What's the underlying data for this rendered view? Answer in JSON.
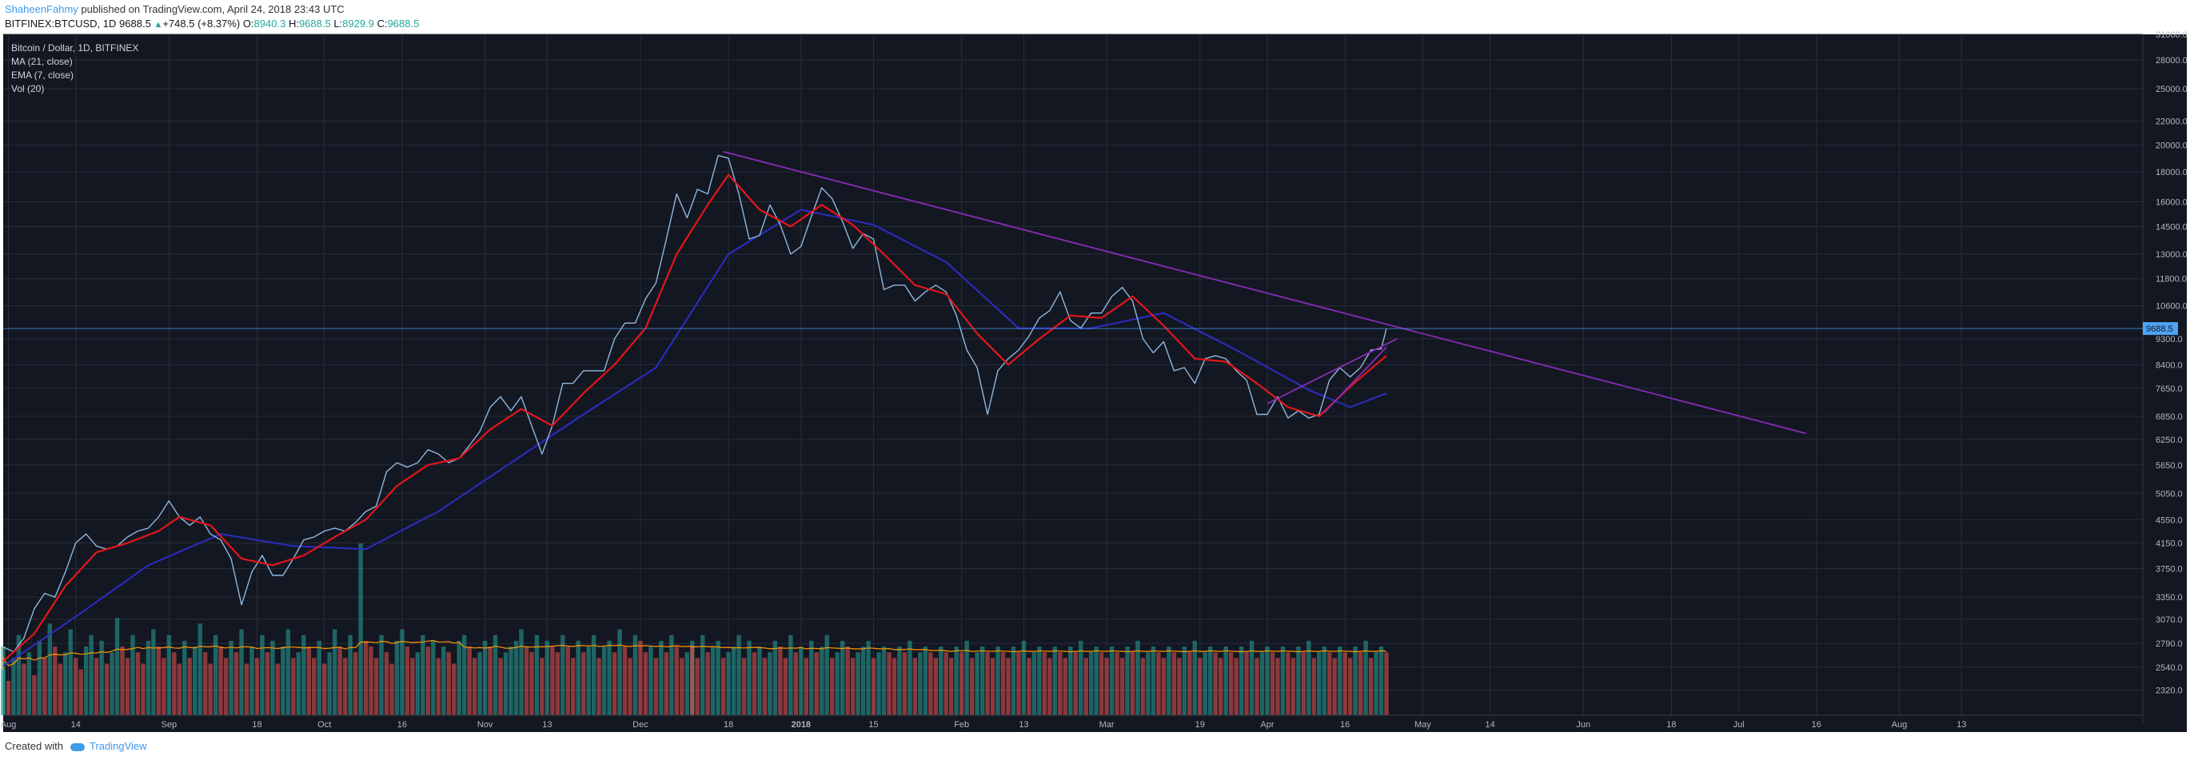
{
  "header": {
    "author": "ShaheenFahmy",
    "published_text": " published on TradingView.com, April 24, 2018 23:43 UTC",
    "symbol": "BITFINEX:BTCUSD, 1D",
    "last": "9688.5",
    "change": "+748.5 (+8.37%)",
    "open_label": "O:",
    "open": "8940.3",
    "high_label": "H:",
    "high": "9688.5",
    "low_label": "L:",
    "low": "8929.9",
    "close_label": "C:",
    "close": "9688.5"
  },
  "legend": {
    "title": "Bitcoin / Dollar, 1D, BITFINEX",
    "ma": "MA (21, close)",
    "ema": "EMA (7, close)",
    "vol": "Vol (20)"
  },
  "footer": {
    "created_with": "Created with",
    "brand": "TradingView"
  },
  "colors": {
    "background": "#131722",
    "grid": "#2a2e39",
    "price": "#8fb7dd",
    "ema": "#e3161b",
    "ma": "#2b2dc3",
    "trend": "#8a2bb8",
    "vol_up": "#26a69a",
    "vol_down": "#ef5350",
    "vol_ma": "#ff9800",
    "last_price_tag": "#4ea3f5"
  },
  "chart_data": {
    "type": "line",
    "title": "Bitcoin / Dollar, 1D, BITFINEX",
    "y_scale": "log",
    "ylim": [
      2100,
      31000
    ],
    "y_ticks": [
      2320,
      2540,
      2790,
      3070,
      3350,
      3750,
      4150,
      4550,
      5050,
      5650,
      6250,
      6850,
      7650,
      8400,
      9300,
      10600,
      11800,
      13000,
      14500,
      16000,
      18000,
      20000,
      22000,
      25000,
      28000,
      31000
    ],
    "x_ticks": [
      "Aug",
      "14",
      "Sep",
      "18",
      "Oct",
      "16",
      "Nov",
      "13",
      "Dec",
      "18",
      "2018",
      "15",
      "Feb",
      "13",
      "Mar",
      "19",
      "Apr",
      "16",
      "May",
      "14",
      "Jun",
      "18",
      "Jul",
      "16",
      "Aug",
      "13"
    ],
    "x_tick_dates": [
      "2017-08-01",
      "2017-08-14",
      "2017-09-01",
      "2017-09-18",
      "2017-10-01",
      "2017-10-16",
      "2017-11-01",
      "2017-11-13",
      "2017-12-01",
      "2017-12-18",
      "2018-01-01",
      "2018-01-15",
      "2018-02-01",
      "2018-02-13",
      "2018-03-01",
      "2018-03-19",
      "2018-04-01",
      "2018-04-16",
      "2018-05-01",
      "2018-05-14",
      "2018-06-01",
      "2018-06-18",
      "2018-07-01",
      "2018-07-16",
      "2018-08-01",
      "2018-08-13"
    ],
    "x_range": [
      "2017-07-31",
      "2018-09-17"
    ],
    "last_price": 9688.5,
    "last_price_label": "9688.5",
    "price_points": [
      [
        "2017-07-31",
        2750
      ],
      [
        "2017-08-02",
        2700
      ],
      [
        "2017-08-04",
        2850
      ],
      [
        "2017-08-06",
        3200
      ],
      [
        "2017-08-08",
        3400
      ],
      [
        "2017-08-10",
        3350
      ],
      [
        "2017-08-12",
        3700
      ],
      [
        "2017-08-14",
        4150
      ],
      [
        "2017-08-16",
        4300
      ],
      [
        "2017-08-18",
        4100
      ],
      [
        "2017-08-20",
        4050
      ],
      [
        "2017-08-22",
        4100
      ],
      [
        "2017-08-24",
        4250
      ],
      [
        "2017-08-26",
        4350
      ],
      [
        "2017-08-28",
        4400
      ],
      [
        "2017-08-30",
        4600
      ],
      [
        "2017-09-01",
        4900
      ],
      [
        "2017-09-03",
        4600
      ],
      [
        "2017-09-05",
        4450
      ],
      [
        "2017-09-07",
        4600
      ],
      [
        "2017-09-09",
        4300
      ],
      [
        "2017-09-11",
        4200
      ],
      [
        "2017-09-13",
        3900
      ],
      [
        "2017-09-15",
        3250
      ],
      [
        "2017-09-17",
        3700
      ],
      [
        "2017-09-19",
        3950
      ],
      [
        "2017-09-21",
        3650
      ],
      [
        "2017-09-23",
        3650
      ],
      [
        "2017-09-25",
        3900
      ],
      [
        "2017-09-27",
        4200
      ],
      [
        "2017-09-29",
        4250
      ],
      [
        "2017-10-01",
        4350
      ],
      [
        "2017-10-03",
        4400
      ],
      [
        "2017-10-05",
        4350
      ],
      [
        "2017-10-07",
        4500
      ],
      [
        "2017-10-09",
        4700
      ],
      [
        "2017-10-11",
        4800
      ],
      [
        "2017-10-13",
        5500
      ],
      [
        "2017-10-15",
        5700
      ],
      [
        "2017-10-17",
        5600
      ],
      [
        "2017-10-19",
        5700
      ],
      [
        "2017-10-21",
        6000
      ],
      [
        "2017-10-23",
        5900
      ],
      [
        "2017-10-25",
        5700
      ],
      [
        "2017-10-27",
        5800
      ],
      [
        "2017-10-29",
        6100
      ],
      [
        "2017-10-31",
        6450
      ],
      [
        "2017-11-02",
        7100
      ],
      [
        "2017-11-04",
        7400
      ],
      [
        "2017-11-06",
        7000
      ],
      [
        "2017-11-08",
        7400
      ],
      [
        "2017-11-10",
        6600
      ],
      [
        "2017-11-12",
        5900
      ],
      [
        "2017-11-14",
        6600
      ],
      [
        "2017-11-16",
        7800
      ],
      [
        "2017-11-18",
        7800
      ],
      [
        "2017-11-20",
        8200
      ],
      [
        "2017-11-22",
        8200
      ],
      [
        "2017-11-24",
        8200
      ],
      [
        "2017-11-26",
        9300
      ],
      [
        "2017-11-28",
        9900
      ],
      [
        "2017-11-30",
        9900
      ],
      [
        "2017-12-02",
        10900
      ],
      [
        "2017-12-04",
        11600
      ],
      [
        "2017-12-06",
        13800
      ],
      [
        "2017-12-08",
        16500
      ],
      [
        "2017-12-10",
        15000
      ],
      [
        "2017-12-12",
        16800
      ],
      [
        "2017-12-14",
        16500
      ],
      [
        "2017-12-16",
        19200
      ],
      [
        "2017-12-18",
        19000
      ],
      [
        "2017-12-20",
        16500
      ],
      [
        "2017-12-22",
        13800
      ],
      [
        "2017-12-24",
        14000
      ],
      [
        "2017-12-26",
        15800
      ],
      [
        "2017-12-28",
        14600
      ],
      [
        "2017-12-30",
        13000
      ],
      [
        "2018-01-01",
        13400
      ],
      [
        "2018-01-03",
        15100
      ],
      [
        "2018-01-05",
        16900
      ],
      [
        "2018-01-07",
        16200
      ],
      [
        "2018-01-09",
        14800
      ],
      [
        "2018-01-11",
        13300
      ],
      [
        "2018-01-13",
        14100
      ],
      [
        "2018-01-15",
        13800
      ],
      [
        "2018-01-17",
        11300
      ],
      [
        "2018-01-19",
        11500
      ],
      [
        "2018-01-21",
        11500
      ],
      [
        "2018-01-23",
        10800
      ],
      [
        "2018-01-25",
        11200
      ],
      [
        "2018-01-27",
        11500
      ],
      [
        "2018-01-29",
        11200
      ],
      [
        "2018-01-31",
        10200
      ],
      [
        "2018-02-02",
        8900
      ],
      [
        "2018-02-04",
        8300
      ],
      [
        "2018-02-06",
        6900
      ],
      [
        "2018-02-08",
        8200
      ],
      [
        "2018-02-10",
        8600
      ],
      [
        "2018-02-12",
        8900
      ],
      [
        "2018-02-14",
        9400
      ],
      [
        "2018-02-16",
        10100
      ],
      [
        "2018-02-18",
        10400
      ],
      [
        "2018-02-20",
        11200
      ],
      [
        "2018-02-22",
        10000
      ],
      [
        "2018-02-24",
        9700
      ],
      [
        "2018-02-26",
        10300
      ],
      [
        "2018-02-28",
        10300
      ],
      [
        "2018-03-02",
        11000
      ],
      [
        "2018-03-04",
        11400
      ],
      [
        "2018-03-06",
        10800
      ],
      [
        "2018-03-08",
        9300
      ],
      [
        "2018-03-10",
        8800
      ],
      [
        "2018-03-12",
        9200
      ],
      [
        "2018-03-14",
        8200
      ],
      [
        "2018-03-16",
        8300
      ],
      [
        "2018-03-18",
        7800
      ],
      [
        "2018-03-20",
        8600
      ],
      [
        "2018-03-22",
        8700
      ],
      [
        "2018-03-24",
        8600
      ],
      [
        "2018-03-26",
        8200
      ],
      [
        "2018-03-28",
        7900
      ],
      [
        "2018-03-30",
        6900
      ],
      [
        "2018-04-01",
        6900
      ],
      [
        "2018-04-03",
        7400
      ],
      [
        "2018-04-05",
        6800
      ],
      [
        "2018-04-07",
        7000
      ],
      [
        "2018-04-09",
        6800
      ],
      [
        "2018-04-11",
        6900
      ],
      [
        "2018-04-13",
        7900
      ],
      [
        "2018-04-15",
        8300
      ],
      [
        "2018-04-17",
        8000
      ],
      [
        "2018-04-19",
        8300
      ],
      [
        "2018-04-21",
        8900
      ],
      [
        "2018-04-23",
        8940
      ],
      [
        "2018-04-24",
        9688.5
      ]
    ],
    "ema7_points": [
      [
        "2017-07-31",
        2600
      ],
      [
        "2017-08-06",
        2900
      ],
      [
        "2017-08-12",
        3500
      ],
      [
        "2017-08-18",
        4000
      ],
      [
        "2017-08-24",
        4150
      ],
      [
        "2017-08-30",
        4350
      ],
      [
        "2017-09-03",
        4600
      ],
      [
        "2017-09-09",
        4450
      ],
      [
        "2017-09-15",
        3900
      ],
      [
        "2017-09-21",
        3800
      ],
      [
        "2017-09-27",
        3950
      ],
      [
        "2017-10-03",
        4250
      ],
      [
        "2017-10-09",
        4550
      ],
      [
        "2017-10-15",
        5200
      ],
      [
        "2017-10-21",
        5650
      ],
      [
        "2017-10-27",
        5800
      ],
      [
        "2017-11-02",
        6500
      ],
      [
        "2017-11-08",
        7050
      ],
      [
        "2017-11-14",
        6600
      ],
      [
        "2017-11-20",
        7500
      ],
      [
        "2017-11-26",
        8400
      ],
      [
        "2017-12-02",
        9700
      ],
      [
        "2017-12-08",
        13000
      ],
      [
        "2017-12-14",
        15800
      ],
      [
        "2017-12-18",
        17800
      ],
      [
        "2017-12-24",
        15500
      ],
      [
        "2017-12-30",
        14500
      ],
      [
        "2018-01-05",
        15800
      ],
      [
        "2018-01-11",
        14600
      ],
      [
        "2018-01-17",
        13000
      ],
      [
        "2018-01-23",
        11500
      ],
      [
        "2018-01-29",
        11100
      ],
      [
        "2018-02-04",
        9500
      ],
      [
        "2018-02-10",
        8400
      ],
      [
        "2018-02-16",
        9300
      ],
      [
        "2018-02-22",
        10200
      ],
      [
        "2018-02-28",
        10100
      ],
      [
        "2018-03-06",
        11000
      ],
      [
        "2018-03-12",
        9800
      ],
      [
        "2018-03-18",
        8600
      ],
      [
        "2018-03-24",
        8500
      ],
      [
        "2018-03-30",
        7800
      ],
      [
        "2018-04-05",
        7100
      ],
      [
        "2018-04-11",
        6850
      ],
      [
        "2018-04-17",
        7700
      ],
      [
        "2018-04-24",
        8700
      ]
    ],
    "ma21_points": [
      [
        "2017-07-31",
        2550
      ],
      [
        "2017-08-14",
        3100
      ],
      [
        "2017-08-28",
        3800
      ],
      [
        "2017-09-11",
        4300
      ],
      [
        "2017-09-25",
        4100
      ],
      [
        "2017-10-09",
        4050
      ],
      [
        "2017-10-23",
        4700
      ],
      [
        "2017-11-06",
        5700
      ],
      [
        "2017-11-20",
        6900
      ],
      [
        "2017-12-04",
        8300
      ],
      [
        "2017-12-18",
        13000
      ],
      [
        "2018-01-01",
        15500
      ],
      [
        "2018-01-15",
        14600
      ],
      [
        "2018-01-29",
        12600
      ],
      [
        "2018-02-12",
        9700
      ],
      [
        "2018-02-26",
        9700
      ],
      [
        "2018-03-12",
        10300
      ],
      [
        "2018-03-26",
        8900
      ],
      [
        "2018-04-09",
        7600
      ],
      [
        "2018-04-17",
        7100
      ],
      [
        "2018-04-24",
        7500
      ]
    ],
    "trendlines": [
      {
        "from": [
          "2017-12-17",
          19500
        ],
        "to": [
          "2018-07-14",
          6400
        ]
      },
      {
        "from": [
          "2018-04-01",
          7200
        ],
        "to": [
          "2018-04-26",
          9300
        ]
      },
      {
        "from": [
          "2018-04-12",
          6950
        ],
        "to": [
          "2018-04-24",
          9000
        ]
      }
    ],
    "volume_series": [
      8,
      12,
      6,
      10,
      14,
      9,
      11,
      7,
      13,
      10,
      16,
      12,
      9,
      11,
      15,
      10,
      8,
      12,
      14,
      10,
      13,
      9,
      11,
      17,
      12,
      10,
      14,
      11,
      9,
      13,
      15,
      12,
      10,
      14,
      11,
      9,
      13,
      10,
      12,
      16,
      11,
      9,
      14,
      12,
      10,
      13,
      11,
      15,
      9,
      12,
      10,
      14,
      11,
      13,
      9,
      12,
      15,
      10,
      11,
      14,
      12,
      10,
      13,
      9,
      11,
      15,
      12,
      10,
      14,
      11,
      30,
      13,
      12,
      10,
      14,
      11,
      9,
      13,
      15,
      12,
      10,
      11,
      14,
      12,
      13,
      10,
      12,
      11,
      9,
      13,
      14,
      12,
      10,
      11,
      13,
      12,
      14,
      10,
      11,
      12,
      13,
      15,
      12,
      11,
      14,
      10,
      13,
      12,
      11,
      14,
      12,
      10,
      13,
      11,
      12,
      14,
      10,
      12,
      13,
      11,
      15,
      12,
      10,
      14,
      13,
      11,
      12,
      10,
      13,
      11,
      14,
      12,
      10,
      11,
      13,
      12,
      10,
      14,
      11,
      12,
      13,
      10,
      11,
      12,
      14,
      10,
      13,
      11,
      12,
      10,
      11,
      13,
      12,
      10,
      14,
      11,
      12,
      10,
      13,
      11,
      12,
      14,
      10,
      11,
      13,
      12,
      10,
      11,
      12,
      13,
      10,
      11,
      12,
      11,
      10,
      12,
      11,
      13,
      10,
      11,
      12,
      11,
      10,
      12,
      11,
      10,
      12,
      11,
      13,
      10,
      11,
      12,
      11,
      10,
      12,
      11,
      10,
      12,
      11,
      13,
      10,
      11,
      12,
      11,
      10,
      12,
      11,
      10,
      12,
      11,
      13,
      10,
      11,
      12,
      11,
      10,
      12,
      11,
      10,
      12,
      11,
      13,
      10,
      11,
      12,
      11,
      10,
      12,
      11,
      10,
      12,
      11,
      13,
      10,
      11,
      12,
      11,
      10,
      12,
      11,
      10,
      12,
      11,
      13,
      10,
      11,
      12,
      11,
      10,
      12,
      11,
      10,
      12,
      11,
      13,
      10,
      11,
      12,
      11,
      10,
      12,
      11,
      10,
      12,
      11,
      13,
      10,
      11,
      12,
      11
    ]
  }
}
